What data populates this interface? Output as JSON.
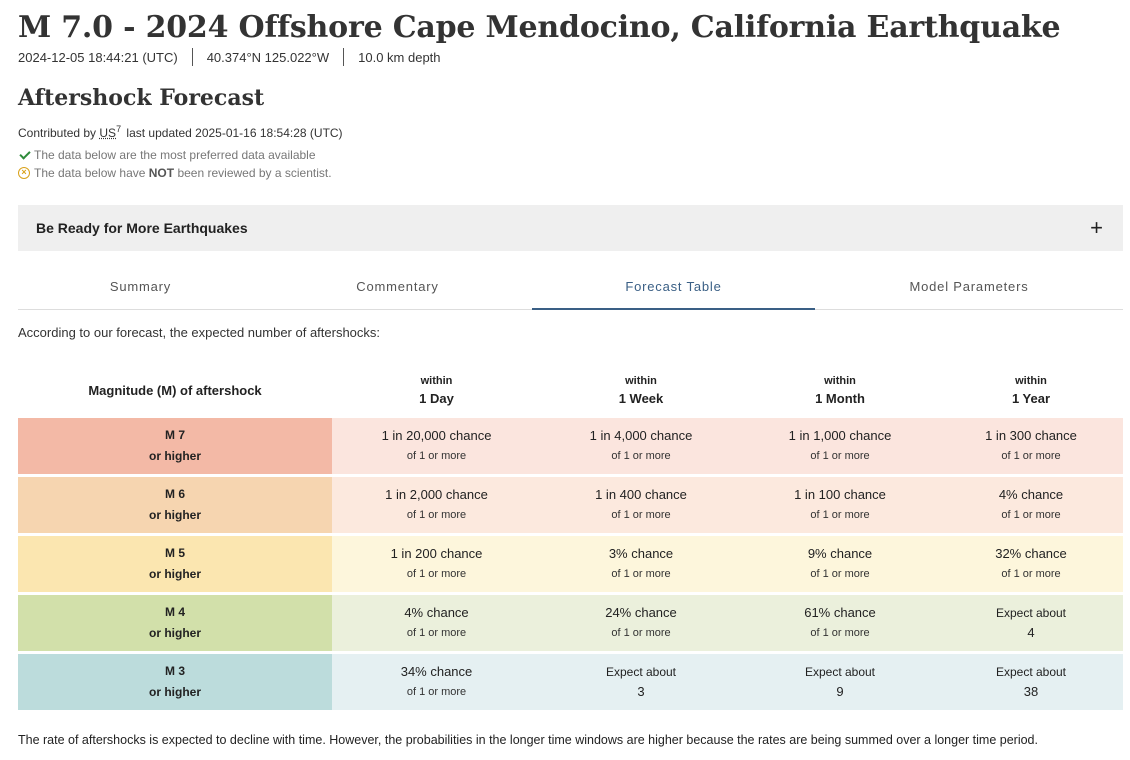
{
  "event": {
    "title": "M 7.0 - 2024 Offshore Cape Mendocino, California Earthquake",
    "time": "2024-12-05 18:44:21 (UTC)",
    "location": "40.374°N 125.022°W",
    "depth": "10.0 km depth"
  },
  "section": {
    "title": "Aftershock Forecast",
    "contributed_prefix": "Contributed by",
    "network": "US",
    "network_sup": "7",
    "updated": "last updated 2025-01-16 18:54:28 (UTC)",
    "status_preferred": "The data below are the most preferred data available",
    "status_review_prefix": "The data below have",
    "status_review_bold": "NOT",
    "status_review_suffix": "been reviewed by a scientist."
  },
  "accordion": {
    "label": "Be Ready for More Earthquakes",
    "icon": "plus-icon"
  },
  "tabs": [
    {
      "label": "Summary",
      "active": false
    },
    {
      "label": "Commentary",
      "active": false
    },
    {
      "label": "Forecast Table",
      "active": true
    },
    {
      "label": "Model Parameters",
      "active": false
    }
  ],
  "forecast": {
    "intro": "According to our forecast, the expected number of aftershocks:",
    "header": {
      "magnitude": "Magnitude (M) of aftershock",
      "columns": [
        {
          "within": "within",
          "period": "1 Day"
        },
        {
          "within": "within",
          "period": "1 Week"
        },
        {
          "within": "within",
          "period": "1 Month"
        },
        {
          "within": "within",
          "period": "1 Year"
        }
      ]
    },
    "rows": [
      {
        "mag": "M 7",
        "higher": "or higher",
        "mag_color": "#f3b9a6",
        "cell_color": "#fbe5de",
        "cells": [
          {
            "main": "1 in 20,000 chance",
            "sub": "of 1 or more"
          },
          {
            "main": "1 in 4,000 chance",
            "sub": "of 1 or more"
          },
          {
            "main": "1 in 1,000 chance",
            "sub": "of 1 or more"
          },
          {
            "main": "1 in 300 chance",
            "sub": "of 1 or more"
          }
        ]
      },
      {
        "mag": "M 6",
        "higher": "or higher",
        "mag_color": "#f6d5b0",
        "cell_color": "#fce9de",
        "cells": [
          {
            "main": "1 in 2,000 chance",
            "sub": "of 1 or more"
          },
          {
            "main": "1 in 400 chance",
            "sub": "of 1 or more"
          },
          {
            "main": "1 in 100 chance",
            "sub": "of 1 or more"
          },
          {
            "main": "4% chance",
            "sub": "of 1 or more"
          }
        ]
      },
      {
        "mag": "M 5",
        "higher": "or higher",
        "mag_color": "#fbe6b0",
        "cell_color": "#fdf6dc",
        "cells": [
          {
            "main": "1 in 200 chance",
            "sub": "of 1 or more"
          },
          {
            "main": "3% chance",
            "sub": "of 1 or more"
          },
          {
            "main": "9% chance",
            "sub": "of 1 or more"
          },
          {
            "main": "32% chance",
            "sub": "of 1 or more"
          }
        ]
      },
      {
        "mag": "M 4",
        "higher": "or higher",
        "mag_color": "#d2e0aa",
        "cell_color": "#ebf0dc",
        "cells": [
          {
            "main": "4% chance",
            "sub": "of 1 or more"
          },
          {
            "main": "24% chance",
            "sub": "of 1 or more"
          },
          {
            "main": "61% chance",
            "sub": "of 1 or more"
          },
          {
            "expect": "Expect about",
            "num": "4"
          }
        ]
      },
      {
        "mag": "M 3",
        "higher": "or higher",
        "mag_color": "#bcdcdc",
        "cell_color": "#e5f0f2",
        "cells": [
          {
            "main": "34% chance",
            "sub": "of 1 or more"
          },
          {
            "expect": "Expect about",
            "num": "3"
          },
          {
            "expect": "Expect about",
            "num": "9"
          },
          {
            "expect": "Expect about",
            "num": "38"
          }
        ]
      }
    ],
    "footnote": "The rate of aftershocks is expected to decline with time. However, the probabilities in the longer time windows are higher because the rates are being summed over a longer time period."
  }
}
